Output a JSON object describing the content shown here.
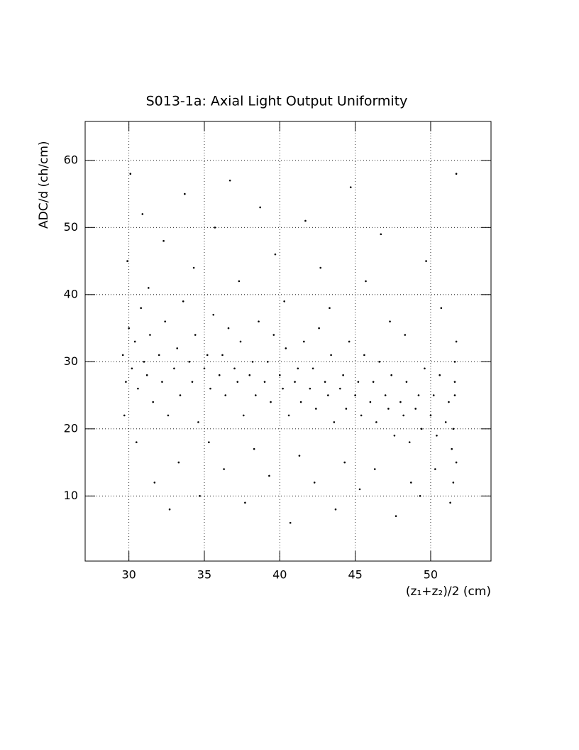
{
  "chart_data": {
    "type": "scatter",
    "title": "S013-1a: Axial Light Output Uniformity",
    "x_label": "(z₁+z₂)/2 (cm)",
    "y_label": "ADC/d (ch/cm)",
    "color": "#000000",
    "grid": true,
    "xlim": [
      27.1,
      54
    ],
    "ylim": [
      0.3,
      65.8
    ],
    "xticks": [
      30,
      35,
      40,
      45,
      50
    ],
    "yticks": [
      10,
      20,
      30,
      40,
      50,
      60
    ],
    "x": [
      29.6,
      29.8,
      30.0,
      29.7,
      29.9,
      30.1,
      30.2,
      30.4,
      30.6,
      30.8,
      30.5,
      30.9,
      31,
      31.2,
      31.4,
      31.6,
      31.3,
      31.7,
      32,
      32.2,
      32.4,
      32.6,
      32.3,
      32.7,
      33,
      33.2,
      33.4,
      33.6,
      33.3,
      33.7,
      34,
      34.2,
      34.4,
      34.6,
      34.3,
      34.7,
      35,
      35.2,
      35.4,
      35.6,
      35.3,
      35.7,
      36,
      36.2,
      36.4,
      36.6,
      36.3,
      36.7,
      37,
      37.2,
      37.4,
      37.6,
      37.3,
      37.7,
      38,
      38.2,
      38.4,
      38.6,
      38.3,
      38.7,
      39,
      39.2,
      39.4,
      39.6,
      39.3,
      39.7,
      40,
      40.2,
      40.4,
      40.6,
      40.3,
      40.7,
      41,
      41.2,
      41.4,
      41.6,
      41.3,
      41.7,
      42,
      42.2,
      42.4,
      42.6,
      42.3,
      42.7,
      43,
      43.2,
      43.4,
      43.6,
      43.3,
      43.7,
      44,
      44.2,
      44.4,
      44.6,
      44.3,
      44.7,
      45,
      45.2,
      45.4,
      45.6,
      45.3,
      45.7,
      46,
      46.2,
      46.4,
      46.6,
      46.3,
      46.7,
      47,
      47.2,
      47.4,
      47.6,
      47.3,
      47.7,
      48,
      48.2,
      48.4,
      48.6,
      48.3,
      48.7,
      49,
      49.2,
      49.4,
      49.6,
      49.3,
      49.7,
      50,
      50.2,
      50.4,
      50.6,
      50.3,
      50.7,
      51,
      51.2,
      51.4,
      51.6,
      51.3,
      51.7,
      51.5,
      51.6,
      51.7,
      51.6,
      51.5,
      51.7
    ],
    "values": [
      31,
      27,
      35,
      22,
      45,
      58,
      29,
      33,
      26,
      38,
      18,
      52,
      30,
      28,
      34,
      24,
      41,
      12,
      31,
      27,
      36,
      22,
      48,
      8,
      29,
      32,
      25,
      39,
      15,
      55,
      30,
      27,
      34,
      21,
      44,
      10,
      29,
      31,
      26,
      37,
      18,
      50,
      28,
      31,
      25,
      35,
      14,
      57,
      29,
      27,
      33,
      22,
      42,
      9,
      28,
      30,
      25,
      36,
      17,
      53,
      27,
      30,
      24,
      34,
      13,
      46,
      28,
      26,
      32,
      22,
      39,
      6,
      27,
      29,
      24,
      33,
      16,
      51,
      26,
      29,
      23,
      35,
      12,
      44,
      27,
      25,
      31,
      21,
      38,
      8,
      26,
      28,
      23,
      33,
      15,
      56,
      25,
      27,
      22,
      31,
      11,
      42,
      24,
      27,
      21,
      30,
      14,
      49,
      25,
      23,
      28,
      19,
      36,
      7,
      24,
      22,
      27,
      18,
      34,
      12,
      23,
      25,
      20,
      29,
      10,
      45,
      22,
      25,
      19,
      28,
      14,
      38,
      21,
      24,
      17,
      27,
      9,
      33,
      20,
      25,
      15,
      30,
      12,
      58
    ]
  }
}
